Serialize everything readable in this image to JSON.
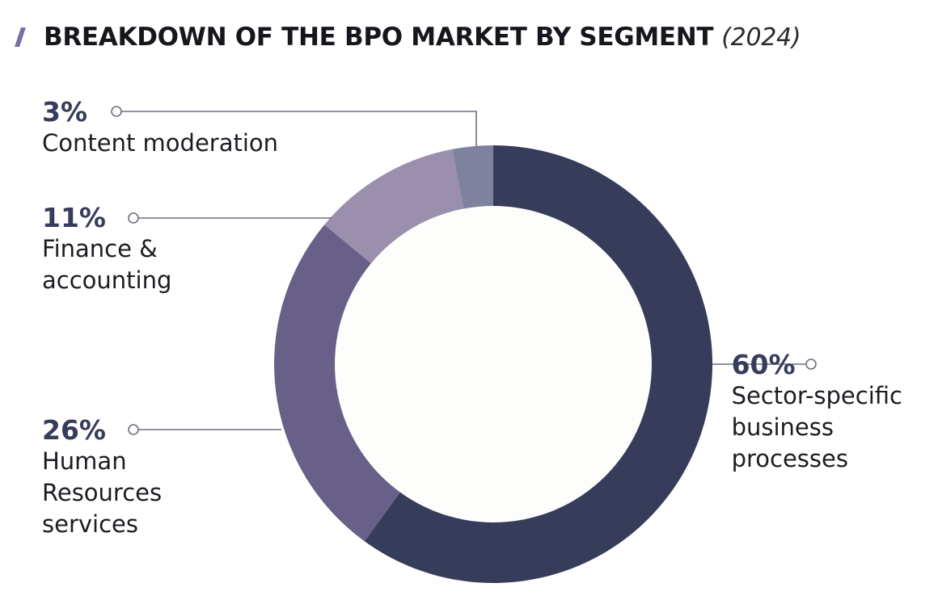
{
  "header": {
    "title": "BREAKDOWN OF THE BPO MARKET BY SEGMENT",
    "subtitle": "(2024)"
  },
  "colors": {
    "accent": "#7a6ea5",
    "label_value": "#363c5a",
    "leader_line": "#6e6e7e",
    "hole": "#fdfdfc"
  },
  "chart_data": {
    "type": "pie",
    "variant": "donut",
    "title": "BREAKDOWN OF THE BPO MARKET BY SEGMENT",
    "subtitle": "(2024)",
    "slices": [
      {
        "label": "Sector-specific business processes",
        "value": 60,
        "display": "60%",
        "color": "#363c5a",
        "label_lines": [
          "Sector-specific",
          "business",
          "processes"
        ]
      },
      {
        "label": "Human Resources services",
        "value": 26,
        "display": "26%",
        "color": "#686089",
        "label_lines": [
          "Human",
          "Resources",
          "services"
        ]
      },
      {
        "label": "Finance & accounting",
        "value": 11,
        "display": "11%",
        "color": "#9a90ad",
        "label_lines": [
          "Finance &",
          "accounting"
        ]
      },
      {
        "label": "Content moderation",
        "value": 3,
        "display": "3%",
        "color": "#7e829e",
        "label_lines": [
          "Content moderation"
        ]
      }
    ]
  }
}
